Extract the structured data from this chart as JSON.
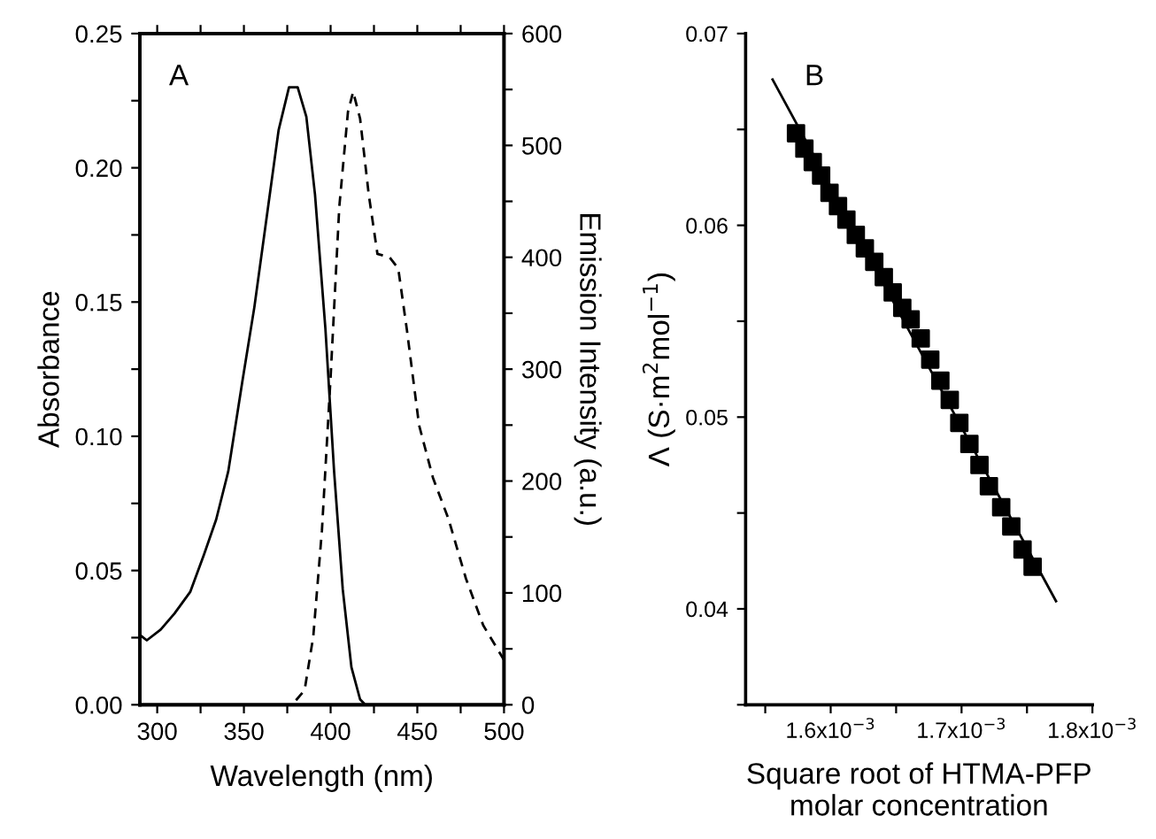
{
  "chart_data": [
    {
      "type": "line",
      "xlabel": "Wavelength (nm)",
      "ylabel": "Absorbance",
      "y2label": "Emission Intensity (a.u.)",
      "annotations": [
        "A"
      ],
      "xlim": [
        290,
        500
      ],
      "xticks": [
        300,
        {
          "value": 325,
          "label": null
        },
        350,
        {
          "value": 375,
          "label": null
        },
        400,
        {
          "value": 425,
          "label": null
        },
        450,
        {
          "value": 475,
          "label": null
        },
        500
      ],
      "ylim": [
        0,
        0.25
      ],
      "yticks": [
        {
          "value": 0,
          "label": "0.00"
        },
        {
          "value": 0.025,
          "label": null
        },
        {
          "value": 0.05,
          "label": "0.05"
        },
        {
          "value": 0.075,
          "label": null
        },
        {
          "value": 0.1,
          "label": "0.10"
        },
        {
          "value": 0.125,
          "label": null
        },
        {
          "value": 0.15,
          "label": "0.15"
        },
        {
          "value": 0.175,
          "label": null
        },
        {
          "value": 0.2,
          "label": "0.20"
        },
        {
          "value": 0.225,
          "label": null
        },
        {
          "value": 0.25,
          "label": "0.25"
        }
      ],
      "y2lim": [
        0,
        600
      ],
      "y2ticks": [
        0,
        {
          "value": 50,
          "label": null
        },
        100,
        {
          "value": 150,
          "label": null
        },
        200,
        {
          "value": 250,
          "label": null
        },
        300,
        {
          "value": 350,
          "label": null
        },
        400,
        {
          "value": 450,
          "label": null
        },
        500,
        {
          "value": 550,
          "label": null
        },
        600
      ],
      "grid": false,
      "legend": false,
      "series": [
        {
          "color": "#000000",
          "line_style": "solid",
          "x": [
            290,
            294,
            302,
            310,
            319,
            327,
            334,
            341,
            349,
            356,
            363,
            370,
            376,
            381,
            386,
            391,
            397,
            402,
            407,
            412,
            417,
            420
          ],
          "values": [
            0.026,
            0.024,
            0.028,
            0.034,
            0.042,
            0.056,
            0.069,
            0.087,
            0.12,
            0.148,
            0.181,
            0.214,
            0.23,
            0.23,
            0.219,
            0.19,
            0.14,
            0.087,
            0.043,
            0.014,
            0.002,
            0
          ]
        },
        {
          "color": "#000000",
          "line_style": "dashed",
          "axis": "y2",
          "x": [
            380,
            385,
            390,
            395,
            400,
            405,
            410,
            413,
            417,
            422,
            427,
            434,
            439,
            444,
            451,
            459,
            468,
            478,
            488,
            500
          ],
          "values": [
            4,
            13,
            61,
            156,
            293,
            445,
            530,
            548,
            524,
            456,
            403,
            400,
            390,
            335,
            250,
            203,
            166,
            113,
            71,
            40
          ]
        }
      ]
    },
    {
      "type": "scatter",
      "xlabel": "Square root of HTMA-PFP\nmolar concentration",
      "ylabel": "Λ (S·m$^{2}$mol$^{−1}$)",
      "annotations": [
        "B"
      ],
      "xlim": [
        0.001535,
        0.0018
      ],
      "xticks": [
        {
          "value": 0.00155,
          "label": null
        },
        {
          "value": 0.0016,
          "label": "1.6x10$^{−3}$"
        },
        {
          "value": 0.00165,
          "label": null
        },
        {
          "value": 0.0017,
          "label": "1.7x10$^{−3}$"
        },
        {
          "value": 0.00175,
          "label": null
        },
        {
          "value": 0.0018,
          "label": "1.8x10$^{−3}$"
        }
      ],
      "ylim": [
        0.035,
        0.07
      ],
      "yticks": [
        {
          "value": 0.035,
          "label": null
        },
        0.04,
        {
          "value": 0.045,
          "label": null
        },
        0.05,
        {
          "value": 0.055,
          "label": null
        },
        0.06,
        {
          "value": 0.065,
          "label": null
        },
        0.07
      ],
      "grid": false,
      "legend": false,
      "series": [
        {
          "color": "#000000",
          "marker": "square",
          "x": [
            0.0015735,
            0.0015799,
            0.0015863,
            0.0015927,
            0.0015991,
            0.0016056,
            0.001612,
            0.0016192,
            0.0016261,
            0.0016333,
            0.0016406,
            0.0016474,
            0.0016547,
            0.0016611,
            0.0016688,
            0.0016761,
            0.0016838,
            0.001691,
            0.0016983,
            0.001706,
            0.0017137,
            0.0017209,
            0.0017303,
            0.001738,
            0.0017466,
            0.0017543
          ],
          "values": [
            0.0648,
            0.064,
            0.0633,
            0.0626,
            0.0617,
            0.061,
            0.0603,
            0.0595,
            0.0588,
            0.0581,
            0.0573,
            0.0565,
            0.0557,
            0.0551,
            0.0541,
            0.053,
            0.0519,
            0.0509,
            0.0497,
            0.0486,
            0.0475,
            0.0464,
            0.0453,
            0.0443,
            0.0431,
            0.0422
          ]
        },
        {
          "type": "line",
          "color": "#000000",
          "line_style": "solid",
          "x": [
            0.0015556,
            0.0017722
          ],
          "values": [
            0.0676,
            0.0404
          ]
        }
      ]
    }
  ]
}
